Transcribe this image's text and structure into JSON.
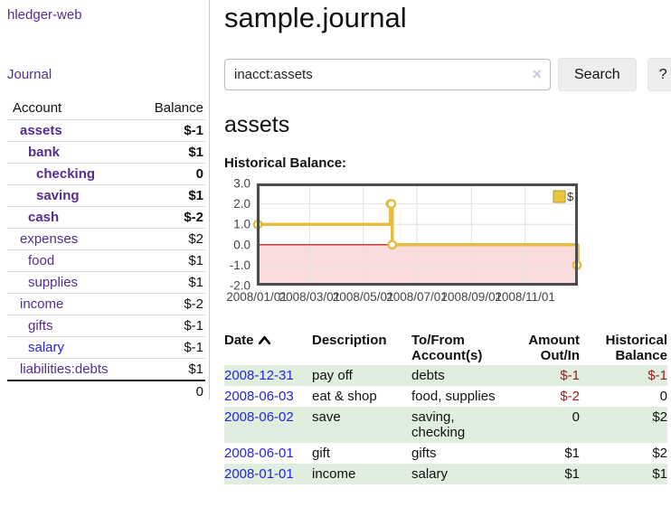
{
  "app": {
    "brand": "hledger-web"
  },
  "sidebar": {
    "nav_journal": "Journal",
    "accounts": {
      "header_account": "Account",
      "header_balance": "Balance",
      "rows": [
        {
          "name": "assets",
          "balance": "$-1",
          "depth": 1,
          "bold": true,
          "balance_class": "neg-strong",
          "link_class": "purple-link"
        },
        {
          "name": "bank",
          "balance": "$1",
          "depth": 2,
          "bold": true,
          "balance_class": "",
          "link_class": "purple-link"
        },
        {
          "name": "checking",
          "balance": "0",
          "depth": 3,
          "bold": true,
          "balance_class": "",
          "link_class": "purple-link"
        },
        {
          "name": "saving",
          "balance": "$1",
          "depth": 3,
          "bold": true,
          "balance_class": "",
          "link_class": "purple-link"
        },
        {
          "name": "cash",
          "balance": "$-2",
          "depth": 2,
          "bold": true,
          "balance_class": "neg-strong",
          "link_class": "purple-link"
        },
        {
          "name": "expenses",
          "balance": "$2",
          "depth": 1,
          "bold": false,
          "balance_class": "",
          "link_class": "purple-link"
        },
        {
          "name": "food",
          "balance": "$1",
          "depth": 2,
          "bold": false,
          "balance_class": "",
          "link_class": "purple-link"
        },
        {
          "name": "supplies",
          "balance": "$1",
          "depth": 2,
          "bold": false,
          "balance_class": "",
          "link_class": "purple-link"
        },
        {
          "name": "income",
          "balance": "$-2",
          "depth": 1,
          "bold": false,
          "balance_class": "neg-dim",
          "link_class": "purple-link"
        },
        {
          "name": "gifts",
          "balance": "$-1",
          "depth": 2,
          "bold": false,
          "balance_class": "neg-dim",
          "link_class": "purple-link"
        },
        {
          "name": "salary",
          "balance": "$-1",
          "depth": 2,
          "bold": false,
          "balance_class": "neg-dim",
          "link_class": "blue-link"
        },
        {
          "name": "liabilities:debts",
          "balance": "$1",
          "depth": 1,
          "bold": false,
          "balance_class": "",
          "link_class": "purple-link"
        }
      ],
      "total": "0"
    }
  },
  "main": {
    "title": "sample.journal",
    "search": {
      "value": "inacct:assets",
      "clear_glyph": "×",
      "button_label": "Search",
      "help_label": "?"
    },
    "section_title": "assets",
    "chart_label": "Historical Balance:"
  },
  "chart_data": {
    "type": "line",
    "title": "Historical Balance:",
    "step": true,
    "series": [
      {
        "name": "$",
        "points": [
          [
            "2008-01-01",
            1
          ],
          [
            "2008-06-01",
            2
          ],
          [
            "2008-06-02",
            2
          ],
          [
            "2008-06-03",
            0
          ],
          [
            "2008-12-31",
            -1
          ]
        ]
      }
    ],
    "x_range": [
      "2008-01-01",
      "2008-12-31"
    ],
    "ylim": [
      -2,
      3
    ],
    "y_ticks": [
      "3.0",
      "2.0",
      "1.0",
      "0.0",
      "-1.0",
      "-2.0"
    ],
    "y_tick_values": [
      3,
      2,
      1,
      0,
      -1,
      -2
    ],
    "x_tick_labels": [
      "2008/01/01",
      "2008/03/01",
      "2008/05/01",
      "2008/07/01",
      "2008/09/01",
      "2008/11/01"
    ],
    "x_tick_dates": [
      "2008-01-01",
      "2008-03-01",
      "2008-05-01",
      "2008-07-01",
      "2008-09-01",
      "2008-11-01"
    ],
    "grid": true,
    "legend_position": "top-right",
    "legend_label": "$",
    "colors": {
      "line": "#e6bc40",
      "marker_fill": "#ffffff",
      "negative_region": "#fadcdc",
      "zero_line": "#b00000",
      "border": "#4d4d4d",
      "grid": "#e2e2e2",
      "tick_text": "#444444",
      "legend_box": "#e9c63f"
    }
  },
  "register": {
    "headers": [
      {
        "label": "Date",
        "align": "left",
        "sort": "ascending"
      },
      {
        "label": "Description",
        "align": "left"
      },
      {
        "label": "To/From Account(s)",
        "align": "left"
      },
      {
        "label": "Amount Out/In",
        "align": "right"
      },
      {
        "label": "Historical Balance",
        "align": "right"
      }
    ],
    "rows": [
      {
        "date": "2008-12-31",
        "description": "pay off",
        "accounts": "debts",
        "amount": "$-1",
        "amount_neg": true,
        "balance": "$-1",
        "balance_neg": true
      },
      {
        "date": "2008-06-03",
        "description": "eat & shop",
        "accounts": "food, supplies",
        "amount": "$-2",
        "amount_neg": true,
        "balance": "0",
        "balance_neg": false
      },
      {
        "date": "2008-06-02",
        "description": "save",
        "accounts": "saving, checking",
        "amount": "0",
        "amount_neg": false,
        "balance": "$2",
        "balance_neg": false
      },
      {
        "date": "2008-06-01",
        "description": "gift",
        "accounts": "gifts",
        "amount": "$1",
        "amount_neg": false,
        "balance": "$2",
        "balance_neg": false
      },
      {
        "date": "2008-01-01",
        "description": "income",
        "accounts": "salary",
        "amount": "$1",
        "amount_neg": false,
        "balance": "$1",
        "balance_neg": false
      }
    ]
  }
}
